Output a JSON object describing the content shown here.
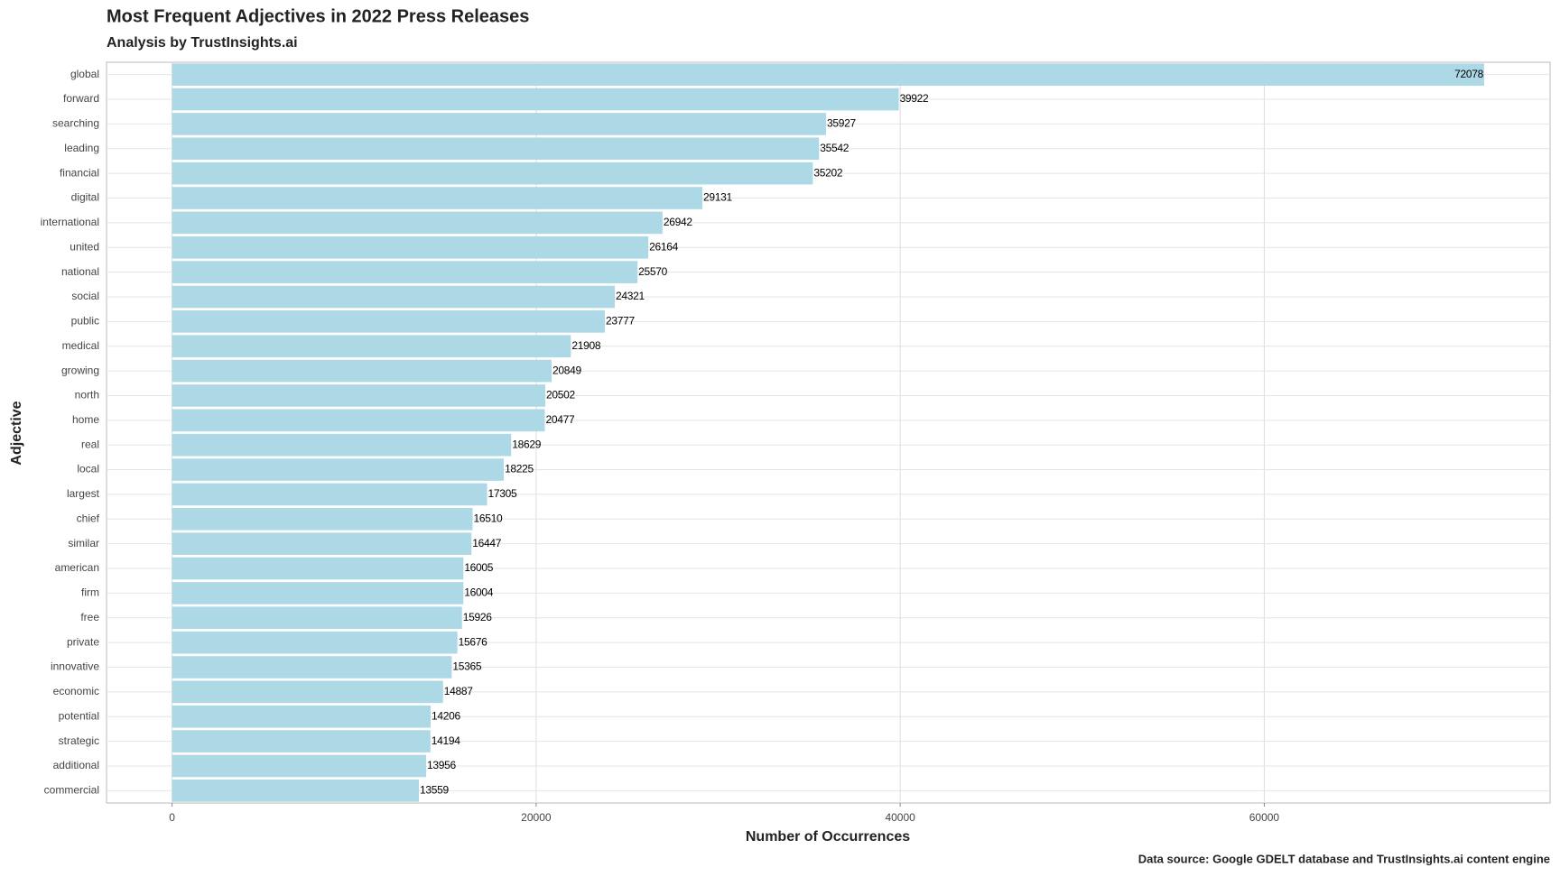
{
  "chart_data": {
    "type": "barh",
    "title": "Most Frequent Adjectives in 2022 Press Releases",
    "subtitle": "Analysis by TrustInsights.ai",
    "x_label": "Number of Occurrences",
    "y_label": "Adjective",
    "caption": "Data source: Google GDELT database and TrustInsights.ai content engine",
    "categories": [
      "global",
      "forward",
      "searching",
      "leading",
      "financial",
      "digital",
      "international",
      "united",
      "national",
      "social",
      "public",
      "medical",
      "growing",
      "north",
      "home",
      "real",
      "local",
      "largest",
      "chief",
      "similar",
      "american",
      "firm",
      "free",
      "private",
      "innovative",
      "economic",
      "potential",
      "strategic",
      "additional",
      "commercial"
    ],
    "values": [
      72078,
      39922,
      35927,
      35542,
      35202,
      29131,
      26942,
      26164,
      25570,
      24321,
      23777,
      21908,
      20849,
      20502,
      20477,
      18629,
      18225,
      17305,
      16510,
      16447,
      16005,
      16004,
      15926,
      15676,
      15365,
      14887,
      14206,
      14194,
      13956,
      13559
    ],
    "color": "#add8e6",
    "xlim": [
      -3600,
      75700
    ],
    "xticks": [
      0,
      20000,
      40000,
      60000
    ],
    "grid": true
  }
}
